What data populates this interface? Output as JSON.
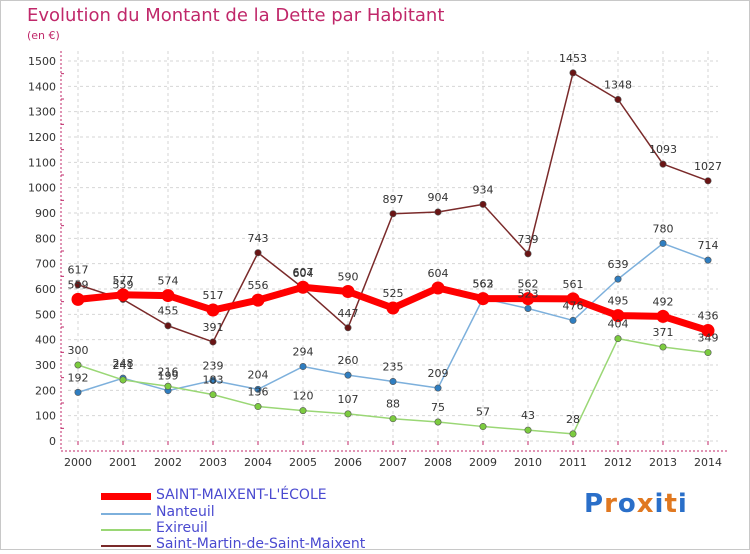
{
  "header": {
    "title": "Evolution du Montant de la Dette par Habitant",
    "unit": "(en €)"
  },
  "logo": {
    "text": "Proxiti",
    "colors": [
      "#2a6fc9",
      "#e07820",
      "#2a6fc9",
      "#e07820",
      "#2a6fc9",
      "#e07820",
      "#2a6fc9"
    ]
  },
  "chart_data": {
    "type": "line",
    "title": "Evolution du Montant de la Dette par Habitant",
    "ylabel": "(en €)",
    "xlabel": "",
    "x": [
      "2000",
      "2001",
      "2002",
      "2003",
      "2004",
      "2005",
      "2006",
      "2007",
      "2008",
      "2009",
      "2010",
      "2011",
      "2012",
      "2013",
      "2014"
    ],
    "ylim": [
      0,
      1500
    ],
    "yticks": [
      0,
      100,
      200,
      300,
      400,
      500,
      600,
      700,
      800,
      900,
      1000,
      1100,
      1200,
      1300,
      1400,
      1500
    ],
    "grid": true,
    "legend_position": "bottom-left",
    "series": [
      {
        "name": "SAINT-MAIXENT-L'ÉCOLE",
        "color": "#ff0000",
        "point_color": "#ff0000",
        "width": 7,
        "values": [
          559,
          577,
          574,
          517,
          556,
          607,
          590,
          525,
          604,
          562,
          562,
          561,
          495,
          492,
          436
        ]
      },
      {
        "name": "Nanteuil",
        "color": "#7db0dc",
        "point_color": "#2f7ec1",
        "width": 1.5,
        "values": [
          192,
          248,
          199,
          239,
          204,
          294,
          260,
          235,
          209,
          563,
          523,
          476,
          639,
          780,
          714
        ]
      },
      {
        "name": "Exireuil",
        "color": "#9ad775",
        "point_color": "#7ccc3f",
        "width": 1.5,
        "values": [
          300,
          241,
          216,
          183,
          136,
          120,
          107,
          88,
          75,
          57,
          43,
          28,
          404,
          371,
          349
        ]
      },
      {
        "name": "Saint-Martin-de-Saint-Maixent",
        "color": "#7a2a2a",
        "point_color": "#6a1414",
        "width": 1.5,
        "values": [
          617,
          559,
          455,
          391,
          743,
          604,
          447,
          897,
          904,
          934,
          739,
          1453,
          1348,
          1093,
          1027
        ]
      }
    ]
  }
}
